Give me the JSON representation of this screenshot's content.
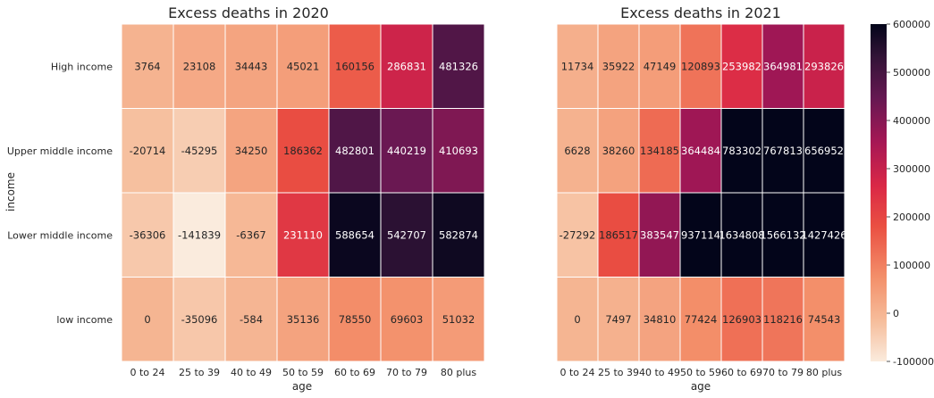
{
  "chart_data": [
    {
      "type": "heatmap",
      "title": "Excess deaths in 2020",
      "xlabel": "age",
      "ylabel": "income",
      "x": [
        "0 to 24",
        "25 to 39",
        "40 to 49",
        "50 to 59",
        "60 to 69",
        "70 to 79",
        "80 plus"
      ],
      "y": [
        "High income",
        "Upper middle income",
        "Lower middle income",
        "low income"
      ],
      "values": [
        [
          3764,
          23108,
          34443,
          45021,
          160156,
          286831,
          481326
        ],
        [
          -20714,
          -45295,
          34250,
          186362,
          482801,
          440219,
          410693
        ],
        [
          -36306,
          -141839,
          -6367,
          231110,
          588654,
          542707,
          582874
        ],
        [
          0,
          -35096,
          -584,
          35136,
          78550,
          69603,
          51032
        ]
      ]
    },
    {
      "type": "heatmap",
      "title": "Excess deaths in 2021",
      "xlabel": "age",
      "ylabel": "",
      "x": [
        "0 to 24",
        "25 to 39",
        "40 to 49",
        "50 to 59",
        "60 to 69",
        "70 to 79",
        "80 plus"
      ],
      "y": [
        "High income",
        "Upper middle income",
        "Lower middle income",
        "low income"
      ],
      "values": [
        [
          11734,
          35922,
          47149,
          120893,
          253982,
          364981,
          293826
        ],
        [
          6628,
          38260,
          134185,
          364484,
          783302,
          767813,
          656952
        ],
        [
          -27292,
          186517,
          383547,
          937114,
          1634808,
          1566132,
          1427426
        ],
        [
          0,
          7497,
          34810,
          77424,
          126903,
          118216,
          74543
        ]
      ]
    }
  ],
  "colorbar": {
    "vmin": -100000,
    "vmax": 600000,
    "ticks": [
      "600000",
      "500000",
      "400000",
      "300000",
      "200000",
      "100000",
      "0",
      "-100000"
    ],
    "tick_values": [
      600000,
      500000,
      400000,
      300000,
      200000,
      100000,
      0,
      -100000
    ],
    "colormap": "rocket_r"
  }
}
